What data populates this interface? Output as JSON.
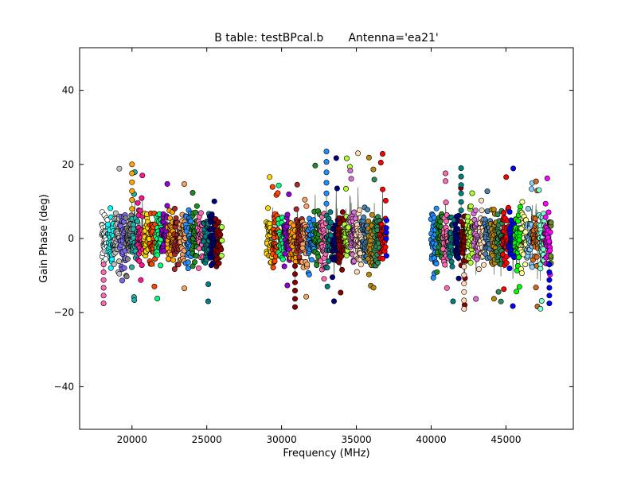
{
  "chart_data": {
    "type": "scatter",
    "title": "B table: testBPcal.b       Antenna='ea21'",
    "xlabel": "Frequency (MHz)",
    "ylabel": "Gain Phase (deg)",
    "xlim": [
      16500,
      49500
    ],
    "ylim": [
      -51.5,
      51.5
    ],
    "xticks": [
      20000,
      25000,
      30000,
      35000,
      40000,
      45000
    ],
    "xtick_labels": [
      "20000",
      "25000",
      "30000",
      "35000",
      "40000",
      "45000"
    ],
    "yticks": [
      -40,
      -20,
      0,
      20,
      40
    ],
    "ytick_labels": [
      "−40",
      "−20",
      "0",
      "20",
      "40"
    ],
    "grid": false,
    "series_style": "multicolored circles per spectral window, with a dark line through each",
    "frequency_ranges_mhz": [
      [
        18000,
        26000
      ],
      [
        29000,
        37000
      ],
      [
        40000,
        48000
      ]
    ],
    "channel_spacing_mhz": 50,
    "colors": [
      "#ffffff",
      "#00ffff",
      "#c0c0c0",
      "#7b68ee",
      "#808080",
      "#20b2aa",
      "#ff1493",
      "#ffd700",
      "#ff4500",
      "#00ff7f",
      "#9400d3",
      "#ffa500",
      "#a52a2a",
      "#f4a460",
      "#1e90ff",
      "#228b22",
      "#ff69b4",
      "#008080",
      "#000080",
      "#8b0000",
      "#adff2f",
      "#da70d6",
      "#ffdab9",
      "#4682b4",
      "#b8860b",
      "#2e8b57",
      "#ff0000",
      "#0000ff",
      "#00ff00",
      "#ffff99",
      "#87cefa",
      "#d2691e",
      "#7fffd4",
      "#ff00ff",
      "#6b8e23",
      "#dda0dd"
    ],
    "points": [],
    "point_spread_deg": 8,
    "series": [
      {
        "x_range_mhz": [
          18000,
          26000
        ],
        "phase_range_deg": [
          -18,
          20
        ]
      },
      {
        "x_range_mhz": [
          29000,
          37000
        ],
        "phase_range_deg": [
          -18.5,
          23.5
        ]
      },
      {
        "x_range_mhz": [
          40000,
          48000
        ],
        "phase_range_deg": [
          -19,
          19
        ]
      }
    ],
    "extremes": [
      {
        "x": 20000,
        "y": 20
      },
      {
        "x": 18100,
        "y": -17.5
      },
      {
        "x": 33000,
        "y": 23.5
      },
      {
        "x": 30900,
        "y": -18.5
      },
      {
        "x": 42000,
        "y": 19
      },
      {
        "x": 42200,
        "y": -19
      },
      {
        "x": 47900,
        "y": -17.5
      }
    ]
  }
}
